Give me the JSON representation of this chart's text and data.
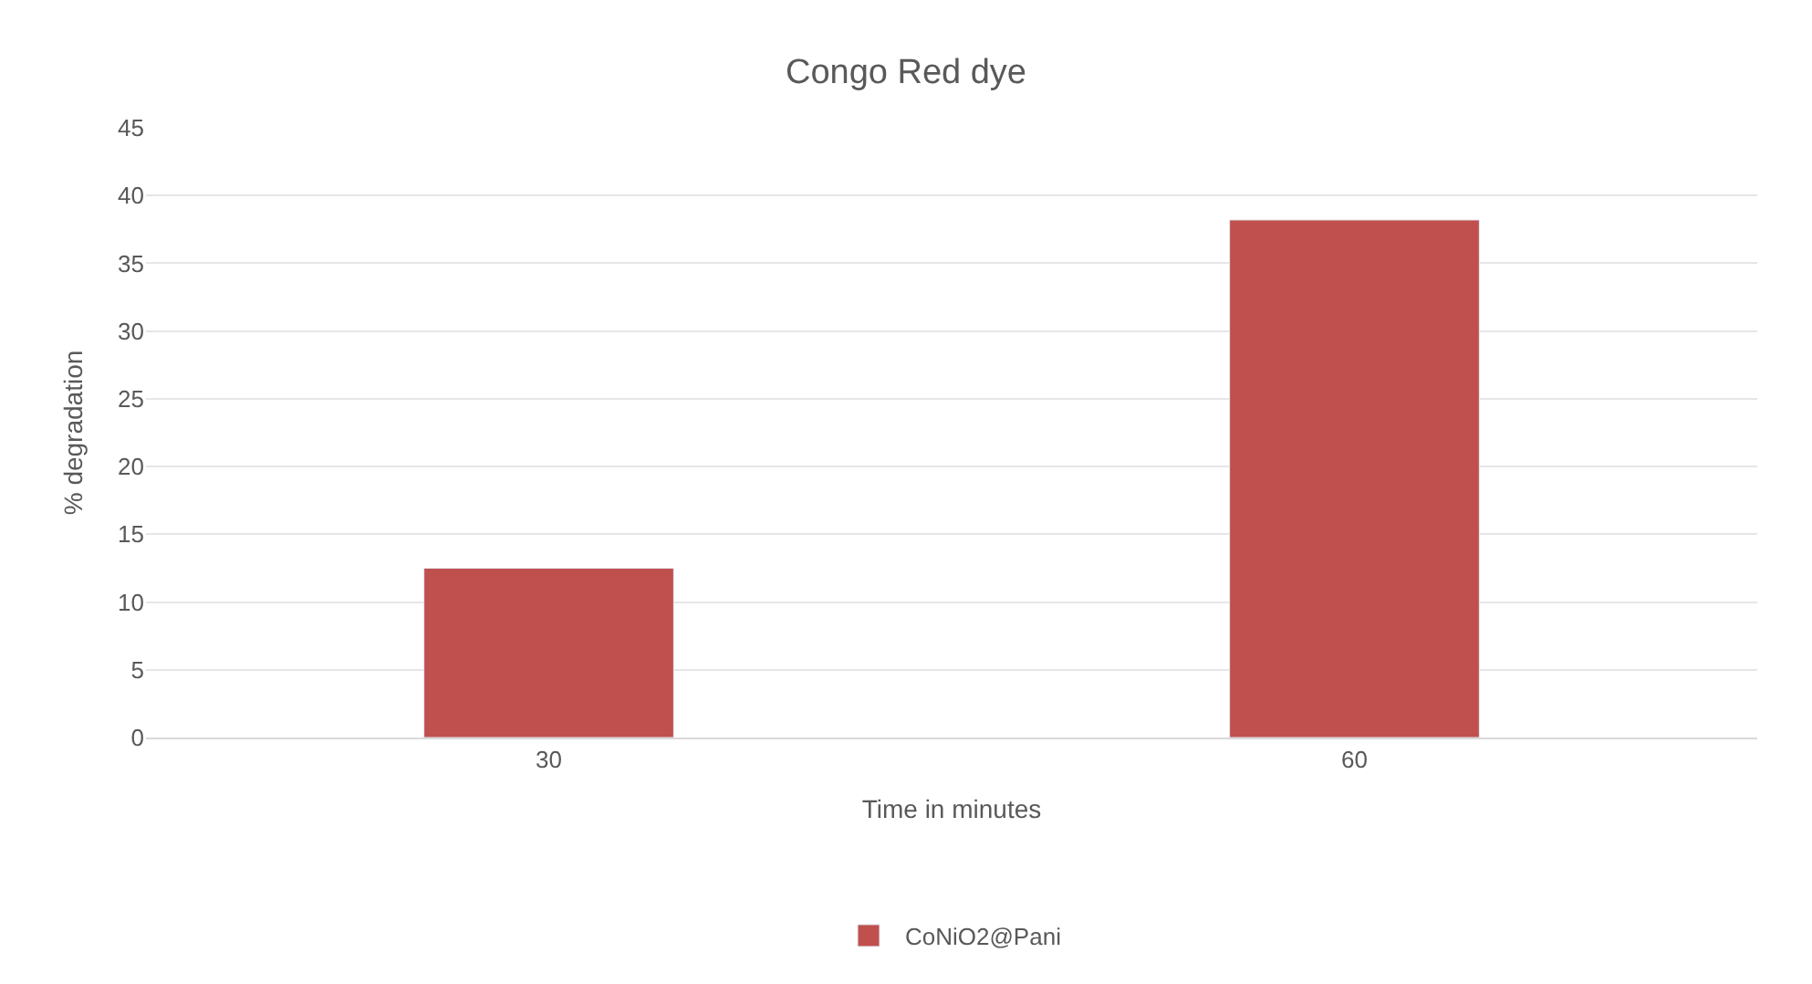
{
  "chart_data": {
    "type": "bar",
    "title": "Congo Red dye",
    "xlabel": "Time in minutes",
    "ylabel": "% degradation",
    "categories": [
      "30",
      "60"
    ],
    "series": [
      {
        "name": "CoNiO2@Pani",
        "color": "#c0504d",
        "values": [
          12.5,
          38.2
        ]
      }
    ],
    "ylim": [
      0,
      45
    ],
    "yticks": [
      0,
      5,
      10,
      15,
      20,
      25,
      30,
      35,
      40,
      45
    ],
    "grid": "y",
    "legend": "bottom"
  }
}
